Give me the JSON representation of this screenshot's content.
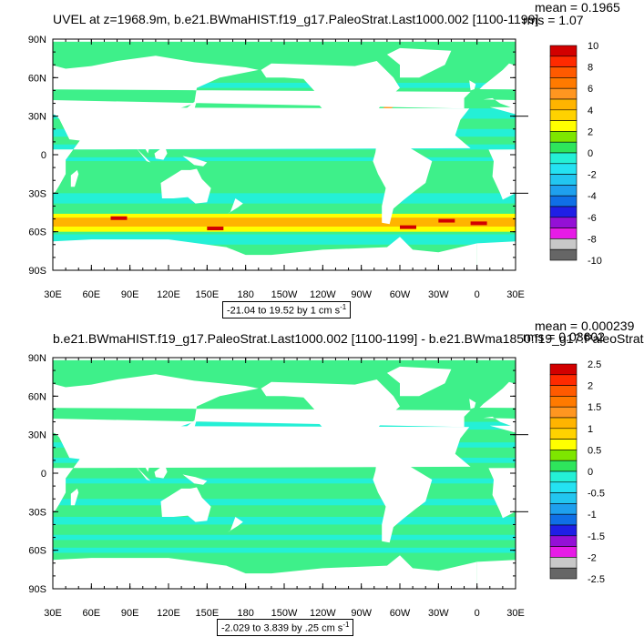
{
  "colors": {
    "land": "#ffffff",
    "ocean_base": "#3ef08a",
    "palette": [
      "#666666",
      "#c8c8c8",
      "#e61be6",
      "#9410d6",
      "#1f1fe6",
      "#0f6fe6",
      "#1ea0ee",
      "#22c6f0",
      "#24e2f2",
      "#24f0d6",
      "#2ee55c",
      "#7ee600",
      "#ffff00",
      "#ffd200",
      "#ffb400",
      "#ff9620",
      "#ff7a00",
      "#ff5a00",
      "#ff2a00",
      "#d20000"
    ]
  },
  "panels": [
    {
      "title": "UVEL at z=1968.9m, b.e21.BWmaHIST.f19_g17.PaleoStrat.Last1000.002 [1100-1199]",
      "mean_label": "mean = 0.1965",
      "rms_label": "rms = 1.07",
      "range_label": "-21.04 to 19.52 by 1 cm s",
      "range_unit_sup": "-1",
      "colorbar_labels": [
        "10",
        "8",
        "6",
        "4",
        "2",
        "0",
        "-2",
        "-4",
        "-6",
        "-8",
        "-10"
      ]
    },
    {
      "title": "b.e21.BWmaHIST.f19_g17.PaleoStrat.Last1000.002 [1100-1199] - b.e21.BWma1850.f19_g17.PaleoStrat",
      "mean_label": "mean = 0.000239",
      "rms_label": "rms = 0.03602",
      "range_label": "-2.029 to 3.839 by .25 cm s",
      "range_unit_sup": "-1",
      "colorbar_labels": [
        "2.5",
        "2",
        "1.5",
        "1",
        "0.5",
        "0",
        "-0.5",
        "-1",
        "-1.5",
        "-2",
        "-2.5"
      ]
    }
  ],
  "chart_data": [
    {
      "type": "heatmap",
      "title": "UVEL at z=1968.9m, b.e21.BWmaHIST.f19_g17.PaleoStrat.Last1000.002 [1100-1199]",
      "x_tick_labels": [
        "30E",
        "60E",
        "90E",
        "120E",
        "150E",
        "180",
        "150W",
        "120W",
        "90W",
        "60W",
        "30W",
        "0",
        "30E"
      ],
      "y_tick_labels": [
        "90N",
        "60N",
        "30N",
        "0",
        "30S",
        "60S",
        "90S"
      ],
      "xlim": [
        30,
        390
      ],
      "ylim": [
        -90,
        90
      ],
      "colorbar_levels": [
        -10,
        -9,
        -8,
        -7,
        -6,
        -5,
        -4,
        -3,
        -2,
        -1,
        0,
        1,
        2,
        3,
        4,
        5,
        6,
        7,
        8,
        9,
        10
      ],
      "colorbar_labels": [
        "10",
        "8",
        "6",
        "4",
        "2",
        "0",
        "-2",
        "-4",
        "-6",
        "-8",
        "-10"
      ],
      "mean": 0.1965,
      "rms": 1.07,
      "contour_range": "-21.04 to 19.52 by 1 cm s-1"
    },
    {
      "type": "heatmap",
      "title": "b.e21.BWmaHIST.f19_g17.PaleoStrat.Last1000.002 [1100-1199] - b.e21.BWma1850.f19_g17.PaleoStrat",
      "x_tick_labels": [
        "30E",
        "60E",
        "90E",
        "120E",
        "150E",
        "180",
        "150W",
        "120W",
        "90W",
        "60W",
        "30W",
        "0",
        "30E"
      ],
      "y_tick_labels": [
        "90N",
        "60N",
        "30N",
        "0",
        "30S",
        "60S",
        "90S"
      ],
      "xlim": [
        30,
        390
      ],
      "ylim": [
        -90,
        90
      ],
      "colorbar_levels": [
        -2.5,
        -2.25,
        -2,
        -1.75,
        -1.5,
        -1.25,
        -1,
        -0.75,
        -0.5,
        -0.25,
        0,
        0.25,
        0.5,
        0.75,
        1,
        1.25,
        1.5,
        1.75,
        2,
        2.25,
        2.5
      ],
      "colorbar_labels": [
        "2.5",
        "2",
        "1.5",
        "1",
        "0.5",
        "0",
        "-0.5",
        "-1",
        "-1.5",
        "-2",
        "-2.5"
      ],
      "mean": 0.000239,
      "rms": 0.03602,
      "contour_range": "-2.029 to 3.839 by .25 cm s-1"
    }
  ]
}
